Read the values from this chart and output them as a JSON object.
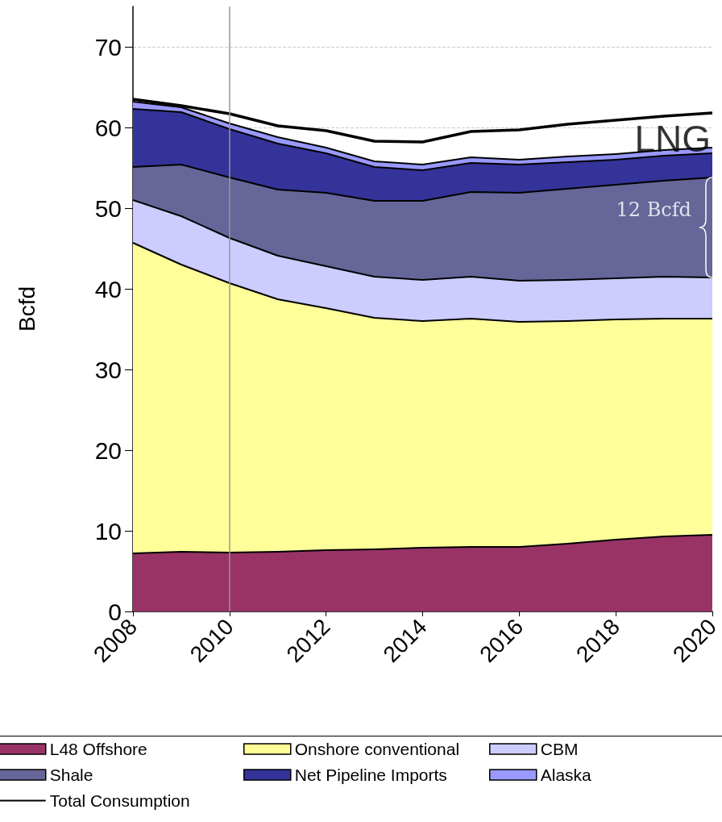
{
  "chart_data": {
    "type": "area",
    "stacked": true,
    "ylabel": "Bcfd",
    "x": [
      2008,
      2009,
      2010,
      2011,
      2012,
      2013,
      2014,
      2015,
      2016,
      2017,
      2018,
      2019,
      2020
    ],
    "xlim": [
      2008,
      2020
    ],
    "xticks": [
      2008,
      2010,
      2012,
      2014,
      2016,
      2018,
      2020
    ],
    "ylim": [
      0,
      75
    ],
    "yticks": [
      0,
      10,
      20,
      30,
      40,
      50,
      60,
      70
    ],
    "grid": "y",
    "legend": "bottom",
    "marker": "none",
    "series": [
      {
        "name": "L48 Offshore",
        "color": "#993366",
        "values": [
          7.2,
          7.4,
          7.3,
          7.4,
          7.6,
          7.7,
          7.9,
          8.0,
          8.0,
          8.4,
          8.9,
          9.3,
          9.5
        ]
      },
      {
        "name": "Onshore conventional",
        "color": "#ffff99",
        "values": [
          38.5,
          35.6,
          33.4,
          31.3,
          30.0,
          28.7,
          28.1,
          28.3,
          27.9,
          27.6,
          27.3,
          27.0,
          26.8
        ]
      },
      {
        "name": "CBM",
        "color": "#ccccff",
        "values": [
          5.3,
          6.0,
          5.6,
          5.4,
          5.2,
          5.1,
          5.1,
          5.2,
          5.1,
          5.1,
          5.1,
          5.2,
          5.1
        ]
      },
      {
        "name": "Shale",
        "color": "#666699",
        "values": [
          4.1,
          6.4,
          7.5,
          8.2,
          9.1,
          9.4,
          9.8,
          10.5,
          10.9,
          11.3,
          11.6,
          11.9,
          12.4
        ]
      },
      {
        "name": "Net Pipeline Imports",
        "color": "#333399",
        "values": [
          7.2,
          6.5,
          6.0,
          5.7,
          4.9,
          4.2,
          3.8,
          3.6,
          3.5,
          3.3,
          3.1,
          3.1,
          3.0
        ]
      },
      {
        "name": "Alaska",
        "color": "#9999ff",
        "values": [
          0.9,
          0.6,
          0.7,
          0.8,
          0.7,
          0.7,
          0.7,
          0.7,
          0.6,
          0.7,
          0.7,
          0.7,
          0.7
        ]
      },
      {
        "name": "Total Consumption",
        "type": "line",
        "color": "#000000",
        "values": [
          63.5,
          62.7,
          61.7,
          60.2,
          59.6,
          58.3,
          58.2,
          59.5,
          59.7,
          60.4,
          60.9,
          61.4,
          61.8
        ]
      }
    ],
    "ref_lines": [
      {
        "axis": "x",
        "value": 2010,
        "color": "#999999"
      }
    ],
    "annotations": [
      {
        "text": "12 Bcfd",
        "x": 2020,
        "y": 53.8
      },
      {
        "text": "LNG",
        "x": 2020,
        "y": 61.8
      }
    ]
  }
}
